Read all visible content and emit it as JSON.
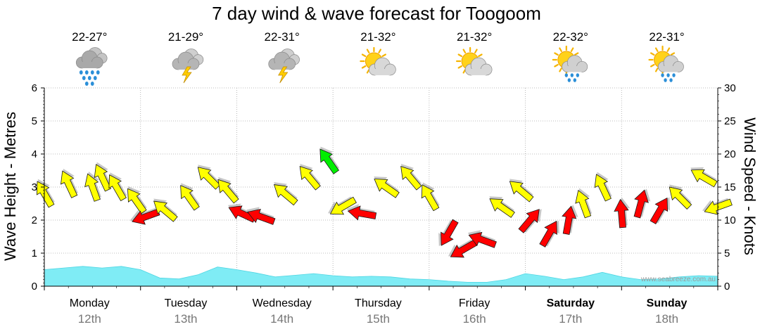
{
  "chart_data": {
    "type": "area",
    "title": "7 day wind & wave forecast for Toogoom",
    "ylabel_left": "Wave Height - Metres",
    "ylabel_right": "Wind Speed - Knots",
    "ylim_left": [
      0,
      6
    ],
    "ylim_right": [
      0,
      30
    ],
    "yticks_left": [
      "0",
      "1",
      "2",
      "3",
      "4",
      "5",
      "6"
    ],
    "yticks_right": [
      "0",
      "5",
      "10",
      "15",
      "20",
      "25",
      "30"
    ],
    "grid": true,
    "watermark": "www.seabreeze.com.au",
    "days": [
      {
        "day": "Monday",
        "date": "12th",
        "temp": "22-27°",
        "weather": "rain",
        "bold": false
      },
      {
        "day": "Tuesday",
        "date": "13th",
        "temp": "21-29°",
        "weather": "storm",
        "bold": false
      },
      {
        "day": "Wednesday",
        "date": "14th",
        "temp": "22-31°",
        "weather": "storm",
        "bold": false
      },
      {
        "day": "Thursday",
        "date": "15th",
        "temp": "21-32°",
        "weather": "partly-cloudy",
        "bold": false
      },
      {
        "day": "Friday",
        "date": "16th",
        "temp": "21-32°",
        "weather": "partly-cloudy",
        "bold": false
      },
      {
        "day": "Saturday",
        "date": "17th",
        "temp": "22-32°",
        "weather": "sun-showers",
        "bold": true
      },
      {
        "day": "Sunday",
        "date": "18th",
        "temp": "22-31°",
        "weather": "sun-showers",
        "bold": true
      }
    ],
    "series": [
      {
        "name": "Wave Height",
        "unit": "m",
        "color": "#7fecf5",
        "x_days": [
          0,
          0.2,
          0.4,
          0.6,
          0.8,
          1.0,
          1.2,
          1.4,
          1.6,
          1.8,
          2.0,
          2.2,
          2.4,
          2.6,
          2.8,
          3.0,
          3.2,
          3.4,
          3.6,
          3.8,
          4.0,
          4.2,
          4.4,
          4.6,
          4.8,
          5.0,
          5.2,
          5.4,
          5.6,
          5.8,
          6.0,
          6.2,
          6.4,
          6.6,
          6.8,
          7.0
        ],
        "values": [
          0.5,
          0.55,
          0.6,
          0.55,
          0.6,
          0.5,
          0.25,
          0.22,
          0.35,
          0.58,
          0.5,
          0.4,
          0.28,
          0.33,
          0.38,
          0.32,
          0.28,
          0.3,
          0.28,
          0.22,
          0.2,
          0.15,
          0.12,
          0.12,
          0.2,
          0.38,
          0.3,
          0.2,
          0.28,
          0.42,
          0.28,
          0.2,
          0.22,
          0.28,
          0.32,
          0.3
        ]
      },
      {
        "name": "Wind Speed",
        "unit": "knots",
        "x_days": [
          0.0,
          0.25,
          0.5,
          0.6,
          0.75,
          0.95,
          1.05,
          1.25,
          1.5,
          1.7,
          1.9,
          2.05,
          2.25,
          2.5,
          2.75,
          2.95,
          3.1,
          3.3,
          3.55,
          3.8,
          4.0,
          4.2,
          4.35,
          4.55,
          4.75,
          4.95,
          5.05,
          5.25,
          5.45,
          5.6,
          5.8,
          6.0,
          6.2,
          6.4,
          6.6,
          6.85,
          7.0
        ],
        "values": [
          14,
          15.5,
          15,
          16.5,
          15,
          13,
          10.5,
          11.5,
          13.5,
          16.5,
          14.5,
          11,
          10.5,
          14,
          16.5,
          19,
          12,
          11,
          15,
          16.5,
          13.5,
          8,
          5.5,
          7,
          12,
          14.5,
          10,
          8,
          10,
          12.5,
          15,
          11,
          12.5,
          11.5,
          13.5,
          16.5,
          12
        ],
        "directions_deg": [
          240,
          245,
          250,
          245,
          240,
          235,
          160,
          220,
          235,
          225,
          230,
          205,
          200,
          220,
          230,
          235,
          150,
          190,
          215,
          230,
          240,
          120,
          150,
          200,
          215,
          220,
          310,
          300,
          280,
          250,
          245,
          265,
          285,
          300,
          225,
          210,
          160
        ],
        "colors": [
          "#ffff00",
          "#ffff00",
          "#ffff00",
          "#ffff00",
          "#ffff00",
          "#ffff00",
          "#ff0000",
          "#ffff00",
          "#ffff00",
          "#ffff00",
          "#ffff00",
          "#ff0000",
          "#ff0000",
          "#ffff00",
          "#ffff00",
          "#00ee00",
          "#ffff00",
          "#ff0000",
          "#ffff00",
          "#ffff00",
          "#ffff00",
          "#ff0000",
          "#ff0000",
          "#ff0000",
          "#ffff00",
          "#ffff00",
          "#ff0000",
          "#ff0000",
          "#ff0000",
          "#ffff00",
          "#ffff00",
          "#ff0000",
          "#ff0000",
          "#ff0000",
          "#ffff00",
          "#ffff00",
          "#ffff00"
        ]
      }
    ]
  }
}
